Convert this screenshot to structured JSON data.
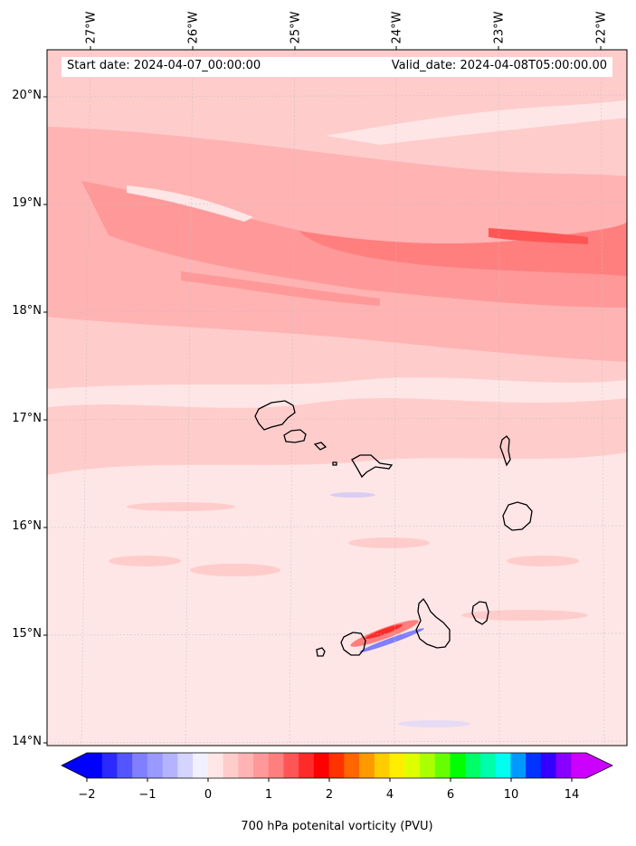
{
  "map": {
    "start_date": "Start date: 2024-04-07_00:00:00",
    "valid_date": "Valid_date: 2024-04-08T05:00:00.00",
    "longitude_labels": [
      "27°W",
      "26°W",
      "25°W",
      "24°W",
      "23°W",
      "22°W"
    ],
    "latitude_labels": [
      "20°N",
      "19°N",
      "18°N",
      "17°N",
      "16°N",
      "15°N",
      "14°N"
    ],
    "extent": {
      "lon": [
        -27.3,
        -21.7
      ],
      "lat": [
        13.95,
        20.45
      ]
    },
    "field": "700 hPa potential vorticity"
  },
  "colorbar": {
    "label": "700 hPa potenital vorticity (PVU)",
    "tick_labels": [
      "−2",
      "−1",
      "0",
      "1",
      "2",
      "4",
      "6",
      "10",
      "14"
    ],
    "colors": [
      "#0000ff",
      "#2a2aff",
      "#5555ff",
      "#7f7fff",
      "#9999ff",
      "#b3b3ff",
      "#d4d4ff",
      "#f0f0ff",
      "#ffe6e6",
      "#ffcccc",
      "#ffb3b3",
      "#ff9999",
      "#ff7f7f",
      "#ff5555",
      "#ff2a2a",
      "#ff0000",
      "#ff3300",
      "#ff6600",
      "#ff9900",
      "#ffcc00",
      "#ffee00",
      "#ddff00",
      "#aaff00",
      "#66ff00",
      "#00ff00",
      "#00ff66",
      "#00ffaa",
      "#00ffee",
      "#0099ff",
      "#0033ff",
      "#3300ff",
      "#8800ff",
      "#cc00ff"
    ],
    "under_color": "#0000ff",
    "over_color": "#cc00ff"
  }
}
